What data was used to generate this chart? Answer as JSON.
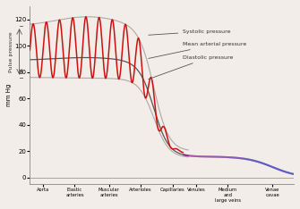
{
  "title": "",
  "xlabel_pulse": "Pulse pressure",
  "ylabel": "mm Hg",
  "ylim": [
    -5,
    130
  ],
  "xlim": [
    0,
    100
  ],
  "categories": [
    "Aorta",
    "Elastic\narteries",
    "Muscular\narteries",
    "Arterioles",
    "Capillaries",
    "Venules",
    "Medium\nand\nlarge veins",
    "Venae\ncavae"
  ],
  "cat_positions": [
    5,
    17,
    30,
    42,
    54,
    63,
    75,
    92
  ],
  "annotations": [
    {
      "text": "Systolic pressure",
      "xy_x": 44,
      "xy_y": 108,
      "xt_x": 58,
      "xt_y": 111
    },
    {
      "text": "Mean arterial pressure",
      "xy_x": 44,
      "xy_y": 90,
      "xt_x": 58,
      "xt_y": 101
    },
    {
      "text": "Diastolic pressure",
      "xy_x": 44,
      "xy_y": 74,
      "xt_x": 58,
      "xt_y": 91
    }
  ],
  "bg_color": "#f2ede8",
  "line_color_pulse": "#cc1111",
  "yticks": [
    0,
    20,
    40,
    60,
    80,
    100,
    120
  ],
  "n_oscillations": 10,
  "art_end": 50,
  "trans_end": 58
}
